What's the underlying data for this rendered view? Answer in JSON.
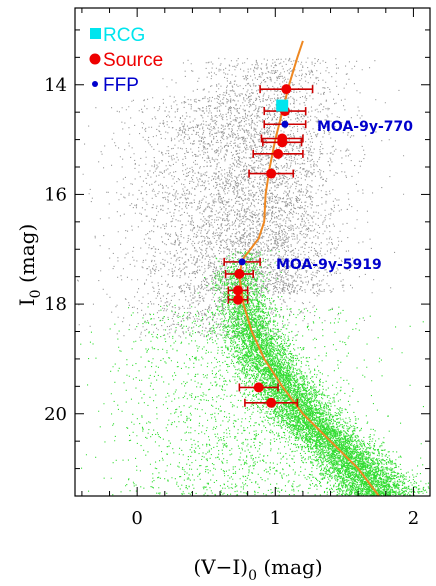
{
  "chart_data": {
    "type": "scatter",
    "title": "",
    "xlabel_main": "(V−I)",
    "xlabel_sub": "0",
    "xlabel_unit": " (mag)",
    "ylabel_main": "I",
    "ylabel_sub": "0",
    "ylabel_unit": " (mag)",
    "xlim": [
      -0.45,
      2.12
    ],
    "ylim": [
      21.5,
      12.6
    ],
    "x_ticks": [
      0,
      1,
      2
    ],
    "y_ticks": [
      14,
      16,
      18,
      20
    ],
    "y_inverted": true,
    "legend": {
      "placement": "top-left",
      "entries": [
        {
          "label": "RCG",
          "marker": "square",
          "color": "#00e5ee"
        },
        {
          "label": "Source",
          "marker": "circle",
          "color": "#ee0000"
        },
        {
          "label": "FFP",
          "marker": "small-circle",
          "color": "#0000cc"
        }
      ]
    },
    "colors": {
      "field_stars_gray": "#999999",
      "field_stars_green": "#33dd33",
      "isochrone": "#ee8822",
      "source": "#ee0000",
      "error_bar": "#cc0000",
      "rcg": "#00e5ee",
      "ffp": "#0000cc"
    },
    "isochrone": {
      "color": "orange",
      "points": [
        {
          "x": 1.75,
          "y": 21.5
        },
        {
          "x": 1.6,
          "y": 21.0
        },
        {
          "x": 1.4,
          "y": 20.5
        },
        {
          "x": 1.2,
          "y": 20.0
        },
        {
          "x": 1.05,
          "y": 19.5
        },
        {
          "x": 0.92,
          "y": 19.0
        },
        {
          "x": 0.83,
          "y": 18.5
        },
        {
          "x": 0.77,
          "y": 18.0
        },
        {
          "x": 0.74,
          "y": 17.5
        },
        {
          "x": 0.76,
          "y": 17.2
        },
        {
          "x": 0.82,
          "y": 17.0
        },
        {
          "x": 0.88,
          "y": 16.8
        },
        {
          "x": 0.92,
          "y": 16.5
        },
        {
          "x": 0.93,
          "y": 16.0
        },
        {
          "x": 0.96,
          "y": 15.5
        },
        {
          "x": 1.0,
          "y": 15.0
        },
        {
          "x": 1.05,
          "y": 14.5
        },
        {
          "x": 1.1,
          "y": 14.0
        },
        {
          "x": 1.16,
          "y": 13.5
        },
        {
          "x": 1.2,
          "y": 13.2
        }
      ]
    },
    "field_stars": [
      {
        "name": "bulge-giants",
        "color": "gray",
        "count": 3200,
        "region": {
          "x_center": 0.95,
          "x_spread": 0.28,
          "y_min": 13.5,
          "y_max": 17.8
        }
      },
      {
        "name": "disk-stars",
        "color": "gray",
        "count": 2600,
        "region": {
          "x_center": 0.55,
          "x_spread": 0.35,
          "y_min": 14.2,
          "y_max": 18.6
        }
      },
      {
        "name": "main-sequence",
        "color": "green",
        "count": 9000,
        "region": {
          "follows": "isochrone",
          "y_min": 17.0,
          "y_max": 21.5,
          "x_spread": 0.14
        }
      },
      {
        "name": "faint-disk",
        "color": "green",
        "count": 1800,
        "region": {
          "x_center": 0.75,
          "x_spread": 0.45,
          "y_min": 18.0,
          "y_max": 21.5
        }
      }
    ],
    "series": [
      {
        "name": "Source",
        "color": "red",
        "marker": "circle",
        "points": [
          {
            "x": 1.08,
            "y": 14.08,
            "xerr": 0.19
          },
          {
            "x": 1.07,
            "y": 14.48,
            "xerr": 0.15
          },
          {
            "x": 1.05,
            "y": 14.98,
            "xerr": 0.15
          },
          {
            "x": 1.05,
            "y": 15.05,
            "xerr": 0.14
          },
          {
            "x": 1.02,
            "y": 15.26,
            "xerr": 0.18
          },
          {
            "x": 0.97,
            "y": 15.62,
            "xerr": 0.16
          },
          {
            "x": 0.74,
            "y": 17.45,
            "xerr": 0.1
          },
          {
            "x": 0.73,
            "y": 17.75,
            "xerr": 0.07
          },
          {
            "x": 0.73,
            "y": 17.92,
            "xerr": 0.07
          },
          {
            "x": 0.88,
            "y": 19.52,
            "xerr": 0.14
          },
          {
            "x": 0.97,
            "y": 19.8,
            "xerr": 0.19
          }
        ]
      },
      {
        "name": "RCG",
        "color": "cyan",
        "marker": "square",
        "points": [
          {
            "x": 1.05,
            "y": 14.38
          }
        ]
      },
      {
        "name": "FFP",
        "color": "blue",
        "marker": "small-circle",
        "points": [
          {
            "x": 1.07,
            "y": 14.72,
            "xerr": 0.15,
            "label": "MOA-9y-770"
          },
          {
            "x": 0.76,
            "y": 17.23,
            "xerr": 0.13,
            "label": "MOA-9y-5919"
          }
        ]
      }
    ]
  }
}
